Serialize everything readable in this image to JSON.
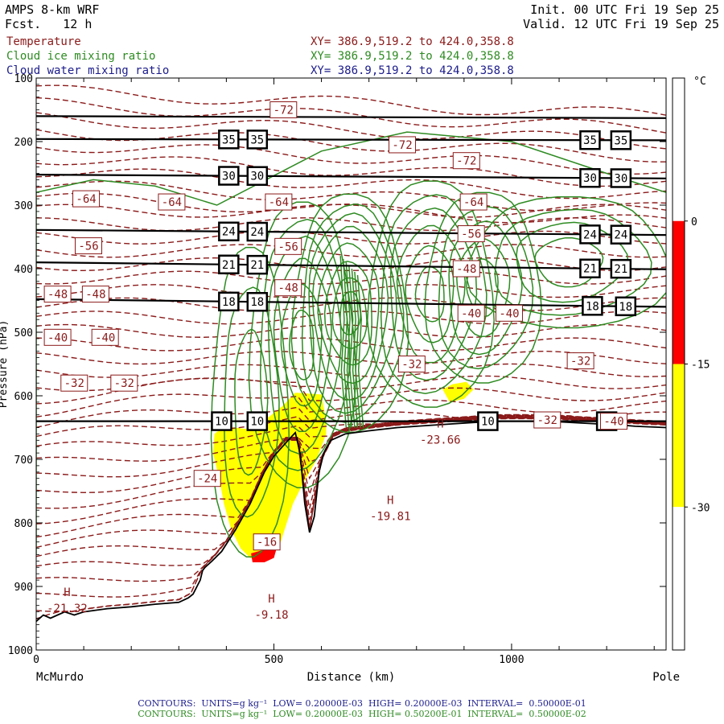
{
  "header": {
    "model": "AMPS 8-km WRF",
    "forecast": "Fcst.   12 h",
    "init": "Init. 00 UTC Fri 19 Sep 25",
    "valid": "Valid. 12 UTC Fri 19 Sep 25"
  },
  "fields": [
    {
      "name": "Temperature",
      "xy": "XY= 386.9,519.2 to 424.0,358.8",
      "color": "#8b1a1a"
    },
    {
      "name": "Cloud ice mixing ratio",
      "xy": "XY= 386.9,519.2 to 424.0,358.8",
      "color": "#2e8b22"
    },
    {
      "name": "Cloud water mixing ratio",
      "xy": "XY= 386.9,519.2 to 424.0,358.8",
      "color": "#1c1c8c"
    }
  ],
  "footer": {
    "line1": "CONTOURS:  UNITS=g kg⁻¹  LOW= 0.20000E-03  HIGH= 0.20000E-03  INTERVAL=  0.50000E-01",
    "line2": "CONTOURS:  UNITS=g kg⁻¹  LOW= 0.20000E-03  HIGH= 0.50200E-01  INTERVAL=  0.50000E-02",
    "line1_color": "#1c1c8c",
    "line2_color": "#2e8b22"
  },
  "chart_data": {
    "type": "cross-section",
    "xlabel": "Distance (km)",
    "ylabel": "Pressure (hPa)",
    "xlim": [
      0,
      1325
    ],
    "ylim": [
      1000,
      100
    ],
    "x_ticks": [
      0,
      500,
      1000
    ],
    "y_ticks": [
      100,
      200,
      300,
      400,
      500,
      600,
      700,
      800,
      900,
      1000
    ],
    "x_endpoints": [
      "McMurdo",
      "Pole"
    ],
    "colorbar": {
      "unit": "°C",
      "ticks": [
        0,
        -15,
        -30
      ],
      "range": [
        15,
        -45
      ],
      "bands": [
        {
          "from": 15,
          "to": 0,
          "color": "#ffffff"
        },
        {
          "from": 0,
          "to": -15,
          "color": "#ff0000"
        },
        {
          "from": -15,
          "to": -30,
          "color": "#ffff00"
        },
        {
          "from": -30,
          "to": -45,
          "color": "#ffffff"
        }
      ]
    },
    "terrain": [
      [
        0,
        955
      ],
      [
        15,
        945
      ],
      [
        30,
        950
      ],
      [
        45,
        945
      ],
      [
        60,
        940
      ],
      [
        80,
        945
      ],
      [
        100,
        940
      ],
      [
        150,
        935
      ],
      [
        200,
        932
      ],
      [
        250,
        928
      ],
      [
        300,
        925
      ],
      [
        320,
        918
      ],
      [
        330,
        912
      ],
      [
        345,
        890
      ],
      [
        350,
        875
      ],
      [
        355,
        870
      ],
      [
        370,
        860
      ],
      [
        390,
        845
      ],
      [
        420,
        810
      ],
      [
        450,
        770
      ],
      [
        480,
        720
      ],
      [
        500,
        695
      ],
      [
        530,
        670
      ],
      [
        545,
        658
      ],
      [
        555,
        690
      ],
      [
        565,
        770
      ],
      [
        575,
        815
      ],
      [
        585,
        790
      ],
      [
        595,
        720
      ],
      [
        605,
        690
      ],
      [
        620,
        670
      ],
      [
        650,
        660
      ],
      [
        700,
        655
      ],
      [
        760,
        650
      ],
      [
        800,
        648
      ],
      [
        860,
        645
      ],
      [
        920,
        642
      ],
      [
        980,
        640
      ],
      [
        1040,
        640
      ],
      [
        1100,
        641
      ],
      [
        1150,
        643
      ],
      [
        1200,
        645
      ],
      [
        1230,
        646
      ],
      [
        1260,
        648
      ],
      [
        1325,
        650
      ]
    ],
    "pressure_lines": [
      {
        "label": "35",
        "pts": [
          [
            0,
            196
          ],
          [
            1325,
            198
          ]
        ],
        "label_x": [
          405,
          465,
          1165,
          1230
        ]
      },
      {
        "label": "30",
        "pts": [
          [
            0,
            252
          ],
          [
            1325,
            258
          ]
        ],
        "label_x": [
          405,
          465,
          1165,
          1230
        ]
      },
      {
        "label": "24",
        "pts": [
          [
            0,
            339
          ],
          [
            1325,
            347
          ]
        ],
        "label_x": [
          405,
          465,
          1165,
          1230
        ]
      },
      {
        "label": "21",
        "pts": [
          [
            0,
            390
          ],
          [
            1325,
            401
          ]
        ],
        "label_x": [
          405,
          465,
          1165,
          1230
        ]
      },
      {
        "label": "18",
        "pts": [
          [
            0,
            448
          ],
          [
            1325,
            460
          ]
        ],
        "label_x": [
          405,
          465,
          1170,
          1240
        ]
      },
      {
        "label": "10",
        "pts": [
          [
            0,
            640
          ],
          [
            1325,
            640
          ]
        ],
        "label_x": [
          390,
          465,
          950,
          1200
        ]
      },
      {
        "label": "",
        "pts": [
          [
            0,
            160
          ],
          [
            1325,
            163
          ]
        ],
        "label_x": []
      }
    ],
    "temperature_labels": [
      {
        "t": "-72",
        "x": 520,
        "p": 150
      },
      {
        "t": "-72",
        "x": 770,
        "p": 205
      },
      {
        "t": "-72",
        "x": 905,
        "p": 230
      },
      {
        "t": "-64",
        "x": 105,
        "p": 290
      },
      {
        "t": "-64",
        "x": 285,
        "p": 295
      },
      {
        "t": "-64",
        "x": 510,
        "p": 295
      },
      {
        "t": "-64",
        "x": 920,
        "p": 295
      },
      {
        "t": "-56",
        "x": 110,
        "p": 364
      },
      {
        "t": "-56",
        "x": 530,
        "p": 365
      },
      {
        "t": "-56",
        "x": 915,
        "p": 345
      },
      {
        "t": "-48",
        "x": 45,
        "p": 440
      },
      {
        "t": "-48",
        "x": 125,
        "p": 440
      },
      {
        "t": "-48",
        "x": 530,
        "p": 430
      },
      {
        "t": "-48",
        "x": 905,
        "p": 400
      },
      {
        "t": "-40",
        "x": 45,
        "p": 508
      },
      {
        "t": "-40",
        "x": 145,
        "p": 508
      },
      {
        "t": "-40",
        "x": 915,
        "p": 470
      },
      {
        "t": "-40",
        "x": 995,
        "p": 470
      },
      {
        "t": "-32",
        "x": 80,
        "p": 580
      },
      {
        "t": "-32",
        "x": 185,
        "p": 580
      },
      {
        "t": "-32",
        "x": 790,
        "p": 550
      },
      {
        "t": "-32",
        "x": 1145,
        "p": 545
      },
      {
        "t": "-32",
        "x": 1075,
        "p": 638
      },
      {
        "t": "-40",
        "x": 1215,
        "p": 640
      },
      {
        "t": "-24",
        "x": 360,
        "p": 730
      },
      {
        "t": "-16",
        "x": 485,
        "p": 830
      }
    ],
    "extrema": [
      {
        "m": "H",
        "v": "-21.32",
        "x": 65,
        "p": 915
      },
      {
        "m": "H",
        "v": "-9.18",
        "x": 495,
        "p": 925
      },
      {
        "m": "H",
        "v": "-19.81",
        "x": 745,
        "p": 770
      },
      {
        "m": "H",
        "v": "-23.66",
        "x": 850,
        "p": 650
      }
    ],
    "yellow_regions": [
      [
        [
          375,
          660
        ],
        [
          395,
          648
        ],
        [
          440,
          652
        ],
        [
          470,
          645
        ],
        [
          520,
          615
        ],
        [
          545,
          595
        ],
        [
          600,
          598
        ],
        [
          610,
          640
        ],
        [
          610,
          660
        ],
        [
          590,
          700
        ],
        [
          560,
          740
        ],
        [
          540,
          770
        ],
        [
          525,
          805
        ],
        [
          510,
          840
        ],
        [
          480,
          860
        ],
        [
          450,
          855
        ],
        [
          430,
          840
        ],
        [
          410,
          810
        ],
        [
          395,
          770
        ],
        [
          385,
          730
        ],
        [
          372,
          690
        ]
      ],
      [
        [
          855,
          590
        ],
        [
          875,
          582
        ],
        [
          905,
          578
        ],
        [
          920,
          590
        ],
        [
          900,
          605
        ],
        [
          870,
          610
        ]
      ]
    ],
    "red_regions": [
      [
        [
          452,
          848
        ],
        [
          480,
          842
        ],
        [
          505,
          842
        ],
        [
          500,
          855
        ],
        [
          480,
          862
        ],
        [
          455,
          862
        ]
      ]
    ]
  }
}
